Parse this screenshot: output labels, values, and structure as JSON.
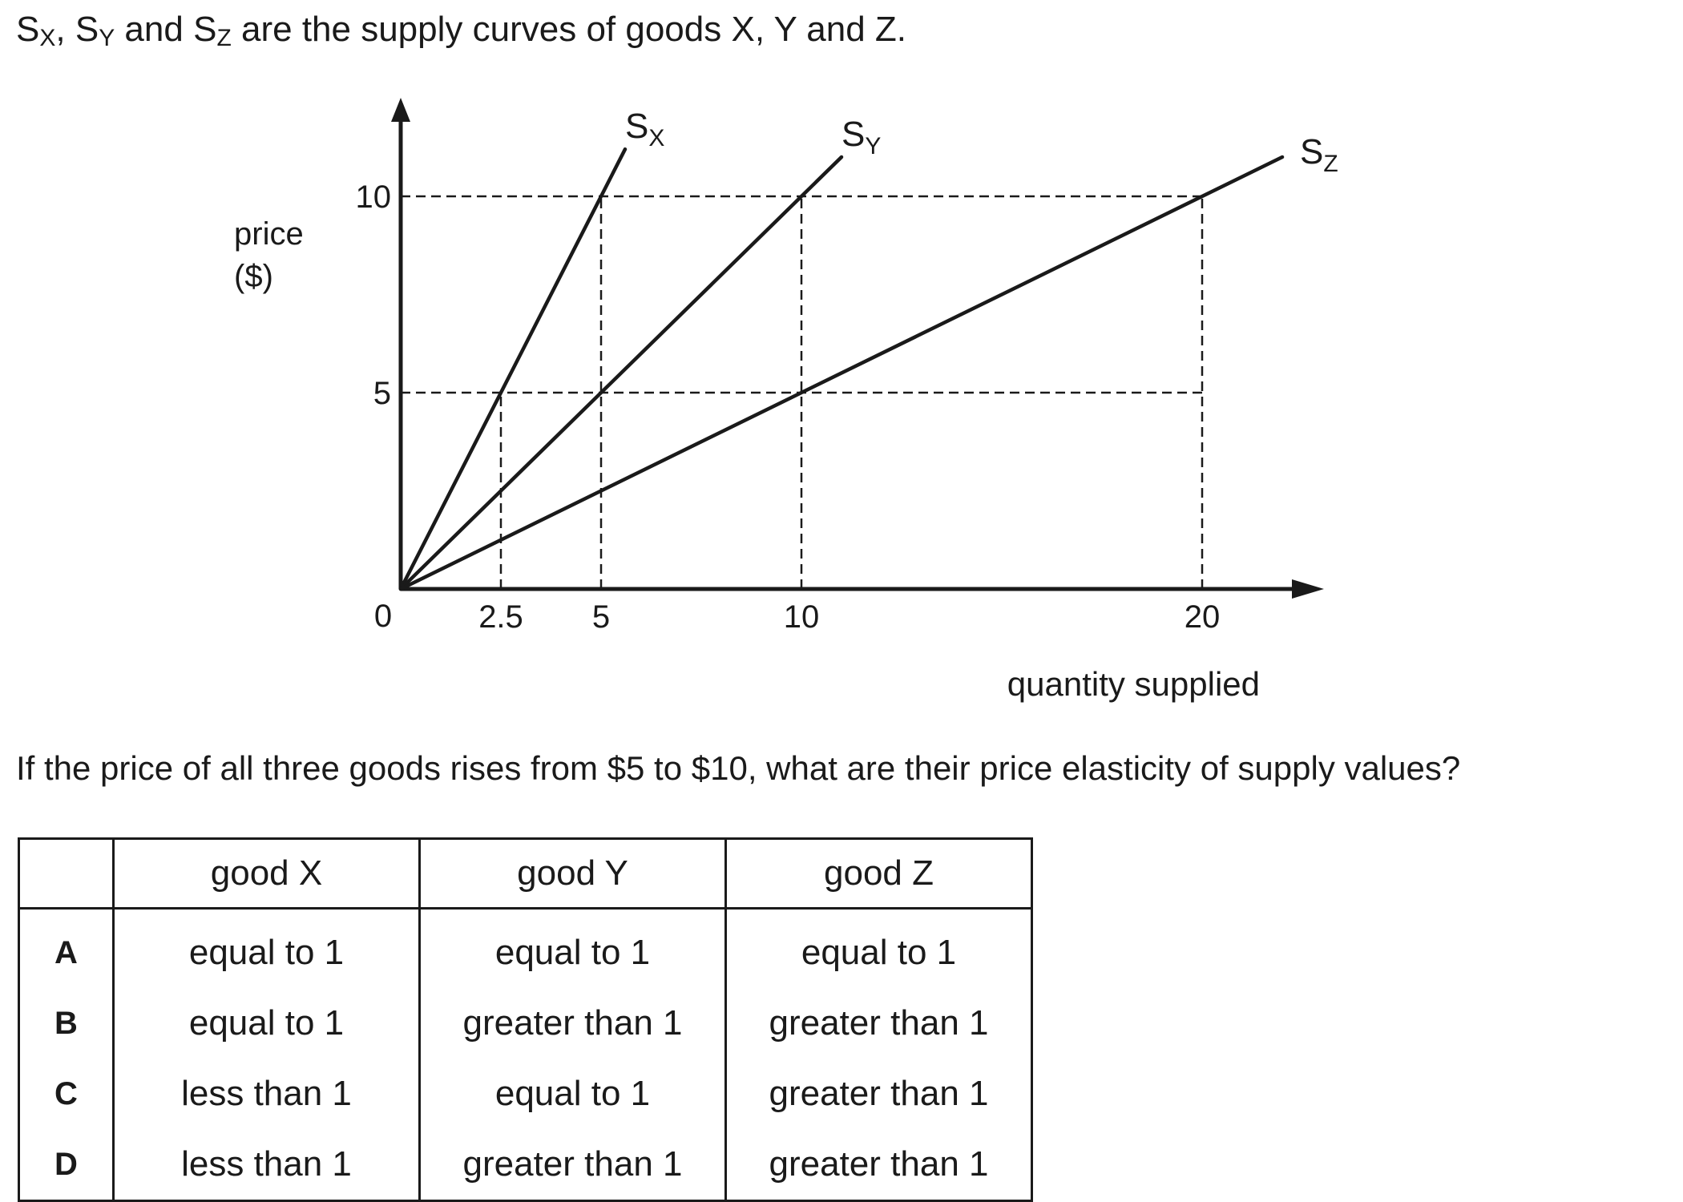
{
  "intro": {
    "s1": "S",
    "s1_sub": "X",
    "s2": "S",
    "s2_sub": "Y",
    "s3": "S",
    "s3_sub": "Z",
    "text": "are the supply curves of goods X, Y and Z.",
    "sep1": ", ",
    "sep2": " and "
  },
  "chart_data": {
    "type": "line",
    "ylabel_line1": "price",
    "ylabel_line2": "($)",
    "xlabel": "quantity supplied",
    "origin_label": "0",
    "xlim": [
      0,
      22.9
    ],
    "ylim": [
      0,
      12.5
    ],
    "x_ticks": [
      2.5,
      5,
      10,
      20
    ],
    "x_tick_labels": [
      "2.5",
      "5",
      "10",
      "20"
    ],
    "y_ticks": [
      5,
      10
    ],
    "y_tick_labels": [
      "5",
      "10"
    ],
    "series": [
      {
        "name": "S",
        "sub": "X",
        "points": [
          [
            0,
            0
          ],
          [
            5.6,
            11.2
          ]
        ]
      },
      {
        "name": "S",
        "sub": "Y",
        "points": [
          [
            0,
            0
          ],
          [
            11.0,
            11.0
          ]
        ]
      },
      {
        "name": "S",
        "sub": "Z",
        "points": [
          [
            0,
            0
          ],
          [
            22.0,
            11.0
          ]
        ]
      }
    ],
    "guides": [
      {
        "x": 2.5,
        "y": 5
      },
      {
        "x": 5,
        "y": 5
      },
      {
        "x": 10,
        "y": 5
      },
      {
        "x": 20,
        "y": 5
      },
      {
        "x": 5,
        "y": 10
      },
      {
        "x": 10,
        "y": 10
      },
      {
        "x": 20,
        "y": 10
      }
    ],
    "grid": false,
    "line_color": "#1a1a1a"
  },
  "question": "If the price of all three goods rises from $5 to $10, what are their price elasticity of supply values?",
  "table": {
    "headers": [
      "",
      "good X",
      "good Y",
      "good Z"
    ],
    "rows": [
      {
        "letter": "A",
        "x": "equal to 1",
        "y": "equal to 1",
        "z": "equal to 1"
      },
      {
        "letter": "B",
        "x": "equal to 1",
        "y": "greater than 1",
        "z": "greater than 1"
      },
      {
        "letter": "C",
        "x": "less than 1",
        "y": "equal to 1",
        "z": "greater than 1"
      },
      {
        "letter": "D",
        "x": "less than 1",
        "y": "greater than 1",
        "z": "greater than 1"
      }
    ]
  }
}
